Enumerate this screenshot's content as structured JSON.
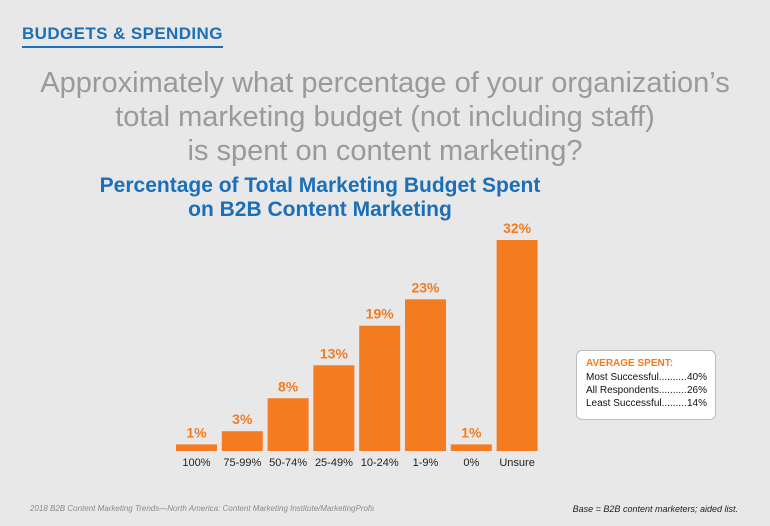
{
  "section_label": "BUDGETS & SPENDING",
  "question": [
    "Approximately what percentage of your organization’s",
    "total marketing budget (not including staff)",
    "is spent on content marketing?"
  ],
  "colors": {
    "accent": "#1b6fb8",
    "bar": "#f47b20",
    "background": "#e8e8e8"
  },
  "chart_data": {
    "type": "bar",
    "title": "Percentage of Total Marketing Budget Spent on B2B Content Marketing",
    "title_lines": [
      "Percentage of Total Marketing Budget Spent",
      "on B2B Content Marketing"
    ],
    "categories": [
      "100%",
      "75-99%",
      "50-74%",
      "25-49%",
      "10-24%",
      "1-9%",
      "0%",
      "Unsure"
    ],
    "values": [
      1,
      3,
      8,
      13,
      19,
      23,
      1,
      32
    ],
    "value_labels": [
      "1%",
      "3%",
      "8%",
      "13%",
      "19%",
      "23%",
      "1%",
      "32%"
    ],
    "xlabel": "",
    "ylabel": "",
    "ylim": [
      0,
      32
    ],
    "grid": false
  },
  "average_spent": {
    "title": "AVERAGE SPENT:",
    "rows": [
      {
        "label": "Most Successful",
        "value": "40%"
      },
      {
        "label": "All Respondents",
        "value": "26%"
      },
      {
        "label": "Least Successful",
        "value": "14%"
      }
    ]
  },
  "source": "2018 B2B Content Marketing Trends—North America: Content Marketing Institute/MarketingProfs",
  "base_note": "Base = B2B content marketers; aided list."
}
